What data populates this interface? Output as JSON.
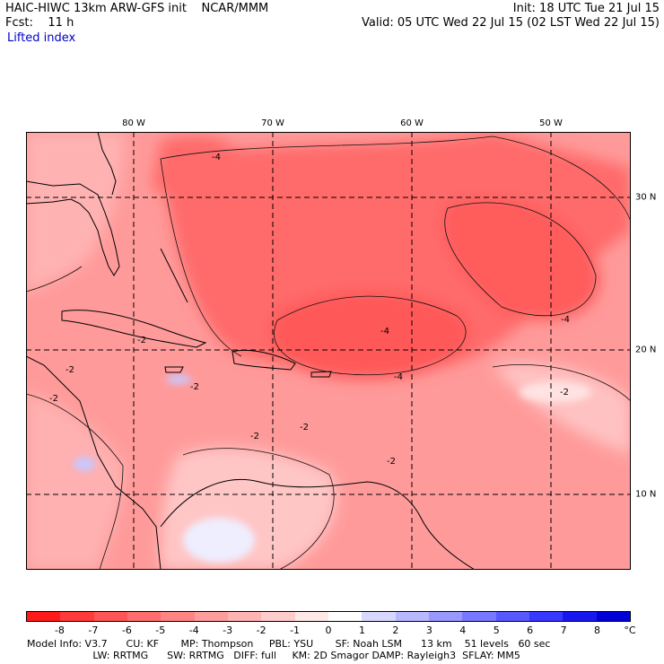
{
  "header": {
    "title": "HAIC-HIWC 13km ARW-GFS init    NCAR/MMM",
    "fcst_label": "Fcst:    11 h",
    "field": "Lifted index",
    "init": "Init: 18 UTC Tue 21 Jul 15",
    "valid": "Valid: 05 UTC Wed 22 Jul 15 (02 LST Wed 22 Jul 15)"
  },
  "axes": {
    "lon_labels": [
      "80 W",
      "70 W",
      "60 W",
      "50 W"
    ],
    "lat_labels": [
      "30 N",
      "20 N",
      "10 N"
    ]
  },
  "contour_labels": [
    "-4",
    "-2",
    "-2",
    "-2",
    "-2",
    "-2",
    "-4",
    "-4",
    "-2",
    "-2",
    "-2",
    "-4"
  ],
  "colorbar": {
    "ticks": [
      "-8",
      "-7",
      "-6",
      "-5",
      "-4",
      "-3",
      "-2",
      "-1",
      "0",
      "1",
      "2",
      "3",
      "4",
      "5",
      "6",
      "7",
      "8"
    ],
    "unit": "°C",
    "colors": [
      "#ff1a1a",
      "#ff3a3a",
      "#ff5555",
      "#ff6e6e",
      "#ff8585",
      "#ff9c9c",
      "#ffb4b4",
      "#ffcccc",
      "#ffe8e8",
      "#ffffff",
      "#d8d8ff",
      "#b8b8ff",
      "#9898ff",
      "#7878ff",
      "#5858ff",
      "#3838ff",
      "#1818ee",
      "#0000d8"
    ]
  },
  "footer": {
    "line1": "Model Info: V3.7      CU: KF       MP: Thompson     PBL: YSU       SF: Noah LSM      13 km    51 levels   60 sec",
    "line2": "                     LW: RRTMG      SW: RRTMG   DIFF: full     KM: 2D Smagor DAMP: Rayleigh3  SFLAY: MM5"
  }
}
